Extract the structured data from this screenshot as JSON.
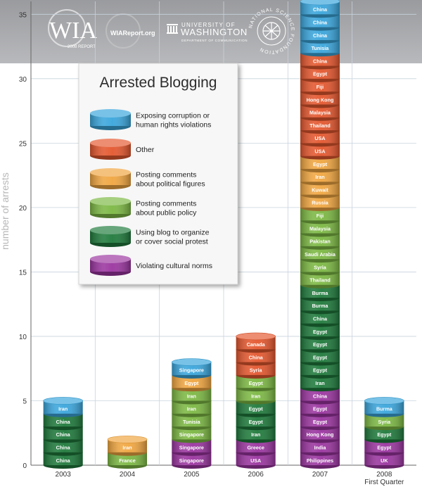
{
  "header": {
    "logo_text": "WIA",
    "logo_sub": "2008 REPORT",
    "site": "WIAReport.org",
    "univ_small": "UNIVERSITY OF",
    "univ_big": "WASHINGTON",
    "univ_dept": "DEPARTMENT OF COMMUNICATION",
    "nsf": "NATIONAL SCIENCE FOUNDATION"
  },
  "colors": {
    "corruption": "#3aa6dc",
    "other": "#e4572e",
    "political": "#f0a640",
    "policy": "#7cb843",
    "protest": "#1f7a3c",
    "cultural": "#9b35a0"
  },
  "chart_data": {
    "type": "bar",
    "title": "Arrested Blogging",
    "ylabel": "number of arrests",
    "xlabel": "",
    "ylim": [
      0,
      36
    ],
    "yticks": [
      0,
      5,
      10,
      15,
      20,
      25,
      30,
      35
    ],
    "grid": true,
    "legend_position": "top-left",
    "legend": [
      {
        "key": "corruption",
        "label_lines": [
          "Exposing corruption or",
          "human rights violations"
        ]
      },
      {
        "key": "other",
        "label_lines": [
          "Other"
        ]
      },
      {
        "key": "political",
        "label_lines": [
          "Posting comments",
          "about political figures"
        ]
      },
      {
        "key": "policy",
        "label_lines": [
          "Posting comments",
          "about public policy"
        ]
      },
      {
        "key": "protest",
        "label_lines": [
          "Using blog to organize",
          "or cover social protest"
        ]
      },
      {
        "key": "cultural",
        "label_lines": [
          "Violating cultural norms"
        ]
      }
    ],
    "categories": [
      {
        "label_lines": [
          "2003"
        ],
        "stack": [
          {
            "cat": "protest",
            "label": "China"
          },
          {
            "cat": "protest",
            "label": "China"
          },
          {
            "cat": "protest",
            "label": "China"
          },
          {
            "cat": "protest",
            "label": "China"
          },
          {
            "cat": "corruption",
            "label": "Iran"
          }
        ]
      },
      {
        "label_lines": [
          "2004"
        ],
        "stack": [
          {
            "cat": "policy",
            "label": "France"
          },
          {
            "cat": "political",
            "label": "Iran"
          }
        ]
      },
      {
        "label_lines": [
          "2005"
        ],
        "stack": [
          {
            "cat": "cultural",
            "label": "Singapore"
          },
          {
            "cat": "cultural",
            "label": "Singapore"
          },
          {
            "cat": "policy",
            "label": "Singapore"
          },
          {
            "cat": "policy",
            "label": "Tunisia"
          },
          {
            "cat": "policy",
            "label": "Iran"
          },
          {
            "cat": "policy",
            "label": "Iran"
          },
          {
            "cat": "political",
            "label": "Egypt"
          },
          {
            "cat": "corruption",
            "label": "Singapore"
          }
        ]
      },
      {
        "label_lines": [
          "2006"
        ],
        "stack": [
          {
            "cat": "cultural",
            "label": "USA"
          },
          {
            "cat": "cultural",
            "label": "Greece"
          },
          {
            "cat": "protest",
            "label": "Iran"
          },
          {
            "cat": "protest",
            "label": "Egypt"
          },
          {
            "cat": "protest",
            "label": "Egypt"
          },
          {
            "cat": "policy",
            "label": "Iran"
          },
          {
            "cat": "policy",
            "label": "Egypt"
          },
          {
            "cat": "other",
            "label": "Syria"
          },
          {
            "cat": "other",
            "label": "China"
          },
          {
            "cat": "other",
            "label": "Canada"
          }
        ]
      },
      {
        "label_lines": [
          "2007"
        ],
        "stack": [
          {
            "cat": "cultural",
            "label": "Philippines"
          },
          {
            "cat": "cultural",
            "label": "India"
          },
          {
            "cat": "cultural",
            "label": "Hong Kong"
          },
          {
            "cat": "cultural",
            "label": "Egypt"
          },
          {
            "cat": "cultural",
            "label": "Egypt"
          },
          {
            "cat": "cultural",
            "label": "China"
          },
          {
            "cat": "protest",
            "label": "Iran"
          },
          {
            "cat": "protest",
            "label": "Egypt"
          },
          {
            "cat": "protest",
            "label": "Egypt"
          },
          {
            "cat": "protest",
            "label": "Egypt"
          },
          {
            "cat": "protest",
            "label": "Egypt"
          },
          {
            "cat": "protest",
            "label": "China"
          },
          {
            "cat": "protest",
            "label": "Burma"
          },
          {
            "cat": "protest",
            "label": "Burma"
          },
          {
            "cat": "policy",
            "label": "Thailand"
          },
          {
            "cat": "policy",
            "label": "Syria"
          },
          {
            "cat": "policy",
            "label": "Saudi Arabia"
          },
          {
            "cat": "policy",
            "label": "Pakistan"
          },
          {
            "cat": "policy",
            "label": "Malaysia"
          },
          {
            "cat": "policy",
            "label": "Fiji"
          },
          {
            "cat": "political",
            "label": "Russia"
          },
          {
            "cat": "political",
            "label": "Kuwait"
          },
          {
            "cat": "political",
            "label": "Iran"
          },
          {
            "cat": "political",
            "label": "Egypt"
          },
          {
            "cat": "other",
            "label": "USA"
          },
          {
            "cat": "other",
            "label": "USA"
          },
          {
            "cat": "other",
            "label": "Thailand"
          },
          {
            "cat": "other",
            "label": "Malaysia"
          },
          {
            "cat": "other",
            "label": "Hong Kong"
          },
          {
            "cat": "other",
            "label": "Fiji"
          },
          {
            "cat": "other",
            "label": "Egypt"
          },
          {
            "cat": "other",
            "label": "China"
          },
          {
            "cat": "corruption",
            "label": "Tunisia"
          },
          {
            "cat": "corruption",
            "label": "China"
          },
          {
            "cat": "corruption",
            "label": "China"
          },
          {
            "cat": "corruption",
            "label": "China"
          }
        ]
      },
      {
        "label_lines": [
          "2008",
          "First Quarter"
        ],
        "stack": [
          {
            "cat": "cultural",
            "label": "UK"
          },
          {
            "cat": "cultural",
            "label": "Egypt"
          },
          {
            "cat": "protest",
            "label": "Egypt"
          },
          {
            "cat": "policy",
            "label": "Syria"
          },
          {
            "cat": "corruption",
            "label": "Burma"
          }
        ]
      }
    ]
  }
}
